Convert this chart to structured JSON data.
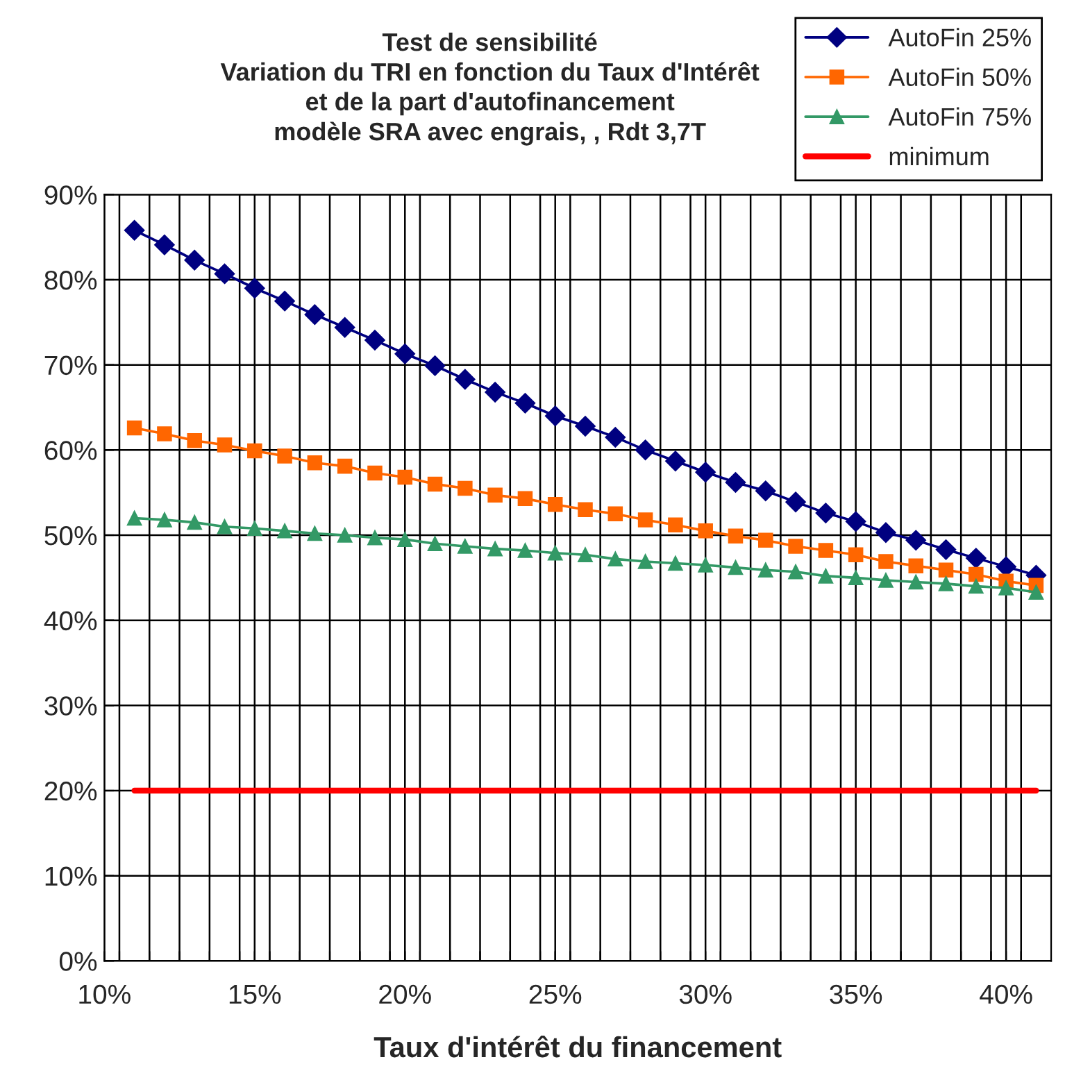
{
  "chart_data": {
    "type": "line",
    "title": "Test de sensibilité\nVariation du TRI en fonction du Taux d'Intérêt\net de la part d'autofinancement\nmodèle SRA avec engrais, , Rdt 3,7T",
    "xlabel": "Taux d'intérêt du financement",
    "x": [
      11,
      12,
      13,
      14,
      15,
      16,
      17,
      18,
      19,
      20,
      21,
      22,
      23,
      24,
      25,
      26,
      27,
      28,
      29,
      30,
      31,
      32,
      33,
      34,
      35,
      36,
      37,
      38,
      39,
      40,
      41
    ],
    "series": [
      {
        "name": "AutoFin 25%",
        "color": "#000080",
        "marker": "diamond",
        "values": [
          85.8,
          84.1,
          82.3,
          80.7,
          79.0,
          77.5,
          75.9,
          74.4,
          72.9,
          71.3,
          69.9,
          68.3,
          66.8,
          65.5,
          64.0,
          62.8,
          61.5,
          60.0,
          58.7,
          57.4,
          56.2,
          55.2,
          53.9,
          52.6,
          51.6,
          50.3,
          49.4,
          48.3,
          47.3,
          46.3,
          45.3
        ]
      },
      {
        "name": "AutoFin 50%",
        "color": "#ff6600",
        "marker": "square",
        "values": [
          62.6,
          61.9,
          61.1,
          60.6,
          59.9,
          59.3,
          58.5,
          58.1,
          57.3,
          56.8,
          56.0,
          55.5,
          54.7,
          54.3,
          53.6,
          53.0,
          52.5,
          51.8,
          51.2,
          50.5,
          49.9,
          49.4,
          48.7,
          48.2,
          47.7,
          46.9,
          46.4,
          45.9,
          45.4,
          44.6,
          44.1
        ]
      },
      {
        "name": "AutoFin 75%",
        "color": "#339966",
        "marker": "triangle",
        "values": [
          52.0,
          51.8,
          51.5,
          51.0,
          50.8,
          50.5,
          50.2,
          50.0,
          49.7,
          49.5,
          49.0,
          48.7,
          48.4,
          48.2,
          47.9,
          47.7,
          47.2,
          46.9,
          46.7,
          46.5,
          46.2,
          45.9,
          45.7,
          45.2,
          45.0,
          44.7,
          44.5,
          44.3,
          44.0,
          43.8,
          43.3
        ]
      },
      {
        "name": "minimum",
        "color": "#ff0000",
        "marker": "none",
        "values": [
          20,
          20,
          20,
          20,
          20,
          20,
          20,
          20,
          20,
          20,
          20,
          20,
          20,
          20,
          20,
          20,
          20,
          20,
          20,
          20,
          20,
          20,
          20,
          20,
          20,
          20,
          20,
          20,
          20,
          20,
          20
        ]
      }
    ],
    "xlim": [
      10,
      41.5
    ],
    "xticks": [
      {
        "value": 10,
        "label": "10%"
      },
      {
        "value": 10.5,
        "label": null
      },
      {
        "value": 11.5,
        "label": null
      },
      {
        "value": 12.5,
        "label": null
      },
      {
        "value": 13.5,
        "label": null
      },
      {
        "value": 14.5,
        "label": null
      },
      {
        "value": 15,
        "label": "15%"
      },
      {
        "value": 15.5,
        "label": null
      },
      {
        "value": 16.5,
        "label": null
      },
      {
        "value": 17.5,
        "label": null
      },
      {
        "value": 18.5,
        "label": null
      },
      {
        "value": 19.5,
        "label": null
      },
      {
        "value": 20,
        "label": "20%"
      },
      {
        "value": 20.5,
        "label": null
      },
      {
        "value": 21.5,
        "label": null
      },
      {
        "value": 22.5,
        "label": null
      },
      {
        "value": 23.5,
        "label": null
      },
      {
        "value": 24.5,
        "label": null
      },
      {
        "value": 25,
        "label": "25%"
      },
      {
        "value": 25.5,
        "label": null
      },
      {
        "value": 26.5,
        "label": null
      },
      {
        "value": 27.5,
        "label": null
      },
      {
        "value": 28.5,
        "label": null
      },
      {
        "value": 29.5,
        "label": null
      },
      {
        "value": 30,
        "label": "30%"
      },
      {
        "value": 30.5,
        "label": null
      },
      {
        "value": 31.5,
        "label": null
      },
      {
        "value": 32.5,
        "label": null
      },
      {
        "value": 33.5,
        "label": null
      },
      {
        "value": 34.5,
        "label": null
      },
      {
        "value": 35,
        "label": "35%"
      },
      {
        "value": 35.5,
        "label": null
      },
      {
        "value": 36.5,
        "label": null
      },
      {
        "value": 37.5,
        "label": null
      },
      {
        "value": 38.5,
        "label": null
      },
      {
        "value": 39.5,
        "label": null
      },
      {
        "value": 40,
        "label": "40%"
      },
      {
        "value": 40.5,
        "label": null
      }
    ],
    "ylim": [
      0,
      90
    ],
    "yticks": [
      {
        "value": 0,
        "label": "0%"
      },
      {
        "value": 10,
        "label": "10%"
      },
      {
        "value": 20,
        "label": "20%"
      },
      {
        "value": 30,
        "label": "30%"
      },
      {
        "value": 40,
        "label": "40%"
      },
      {
        "value": 50,
        "label": "50%"
      },
      {
        "value": 60,
        "label": "60%"
      },
      {
        "value": 70,
        "label": "70%"
      },
      {
        "value": 80,
        "label": "80%"
      },
      {
        "value": 90,
        "label": "90%"
      }
    ],
    "grid": true,
    "legend": "top right",
    "line_style": "solid"
  }
}
